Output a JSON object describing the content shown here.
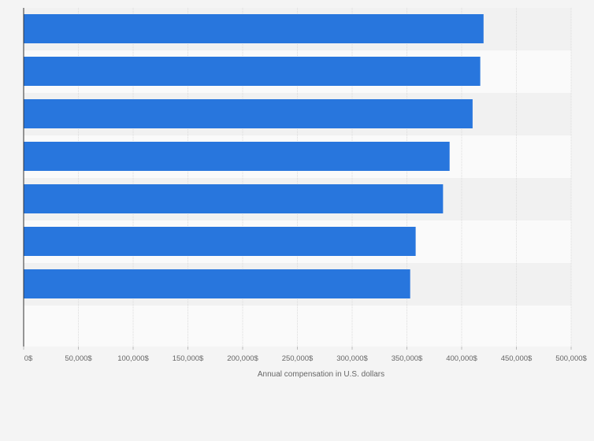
{
  "chart_data": {
    "type": "bar",
    "orientation": "horizontal",
    "categories": [
      "",
      "",
      "",
      "",
      "",
      "",
      ""
    ],
    "values": [
      420000,
      417000,
      410000,
      389000,
      383000,
      358000,
      353000
    ],
    "xlim": [
      0,
      500000
    ],
    "xticks": [
      0,
      50000,
      100000,
      150000,
      200000,
      250000,
      300000,
      350000,
      400000,
      450000,
      500000
    ],
    "tick_labels": [
      "0$",
      "50,000$",
      "100,000$",
      "150,000$",
      "200,000$",
      "250,000$",
      "300,000$",
      "350,000$",
      "400,000$",
      "450,000$",
      "500,000$"
    ],
    "xlabel": "Annual compensation in U.S. dollars",
    "ylabel": "",
    "title": "",
    "grid": true,
    "bar_color": "#2876dd",
    "stripe_colors": [
      "#f1f1f1",
      "#fafafa"
    ],
    "background_color": "#f4f4f4"
  }
}
